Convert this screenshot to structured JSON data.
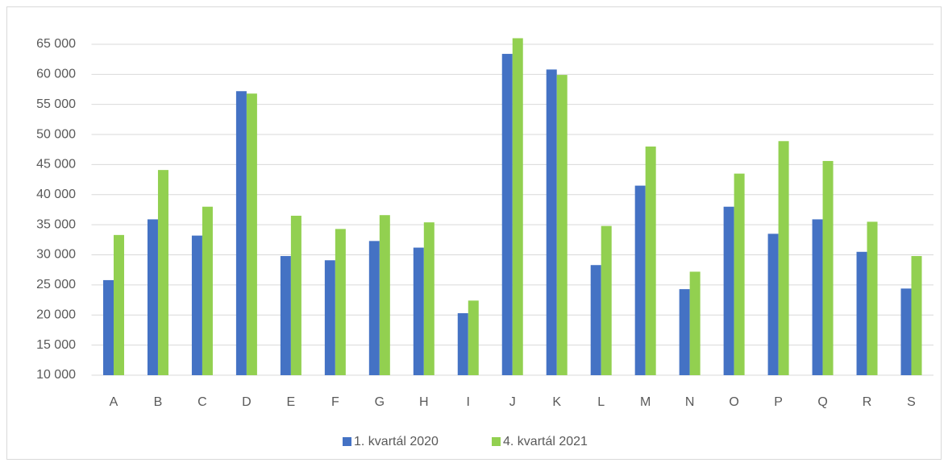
{
  "chart_data": {
    "type": "bar",
    "categories": [
      "A",
      "B",
      "C",
      "D",
      "E",
      "F",
      "G",
      "H",
      "I",
      "J",
      "K",
      "L",
      "M",
      "N",
      "O",
      "P",
      "Q",
      "R",
      "S"
    ],
    "series": [
      {
        "name": "1. kvartál 2020",
        "color": "#4472c4",
        "values": [
          25800,
          35900,
          33200,
          57200,
          29800,
          29100,
          32300,
          31200,
          20300,
          63400,
          60800,
          28300,
          41500,
          24300,
          38000,
          33500,
          35900,
          30500,
          24400
        ]
      },
      {
        "name": "4. kvartál 2021",
        "color": "#92d050",
        "values": [
          33300,
          44100,
          38000,
          56800,
          36500,
          34300,
          36600,
          35400,
          22400,
          66000,
          59900,
          34800,
          48000,
          27200,
          43500,
          48900,
          45600,
          35500,
          29800
        ]
      }
    ],
    "ylim": [
      10000,
      67000
    ],
    "yticks": [
      {
        "value": 10000,
        "label": "10 000"
      },
      {
        "value": 15000,
        "label": "15 000"
      },
      {
        "value": 20000,
        "label": "20 000"
      },
      {
        "value": 25000,
        "label": "25 000"
      },
      {
        "value": 30000,
        "label": "30 000"
      },
      {
        "value": 35000,
        "label": "35 000"
      },
      {
        "value": 40000,
        "label": "40 000"
      },
      {
        "value": 45000,
        "label": "45 000"
      },
      {
        "value": 50000,
        "label": "50 000"
      },
      {
        "value": 55000,
        "label": "55 000"
      },
      {
        "value": 60000,
        "label": "60 000"
      },
      {
        "value": 65000,
        "label": "65 000"
      }
    ],
    "grid": true,
    "legend": "bottom"
  }
}
